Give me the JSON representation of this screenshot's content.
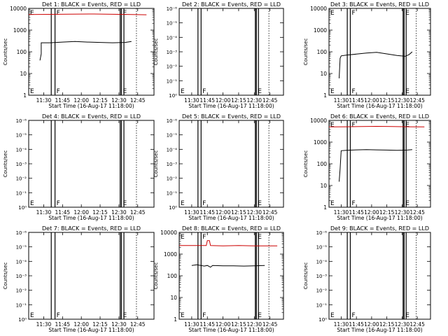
{
  "common": {
    "title_suffix": "BLACK = Events, RED = LLD",
    "xlabel": "Start Time (16-Aug-17 11:18:00)",
    "ylabel": "Counts/sec",
    "x_ticks": [
      "11:30",
      "11:45",
      "12:00",
      "12:15",
      "12:30",
      "12:45"
    ],
    "log_ticks": [
      "1",
      "10",
      "100",
      "1000",
      "10000"
    ],
    "exp_ticks": [
      "10⁰",
      "10⁻¹",
      "10⁻²",
      "10⁻³",
      "10⁻⁴",
      "10⁻⁵",
      "10⁻⁶"
    ],
    "marker_labels": [
      "E",
      "F",
      "E"
    ],
    "colors": {
      "events": "#000000",
      "lld": "#cc0000"
    }
  },
  "chart_data": [
    {
      "type": "line",
      "title": "Det 1: BLACK = Events, RED = LLD",
      "y_scale": "log",
      "ylim": [
        1,
        10000
      ],
      "xlim": [
        "11:18",
        "12:58"
      ],
      "vlines": [
        "11:36",
        "11:39",
        "12:31",
        "12:32",
        "12:34",
        "12:44"
      ],
      "series": [
        {
          "name": "RED = LLD",
          "x": [
            "11:18",
            "11:35",
            "11:50",
            "12:10",
            "12:30",
            "12:40",
            "12:52"
          ],
          "values": [
            5200,
            5300,
            5400,
            5500,
            5300,
            5200,
            5100
          ]
        },
        {
          "name": "BLACK = Events",
          "x": [
            "11:27",
            "11:28",
            "11:28",
            "11:35",
            "11:45",
            "11:55",
            "12:05",
            "12:15",
            "12:25",
            "12:35",
            "12:40"
          ],
          "values": [
            40,
            80,
            260,
            260,
            280,
            300,
            280,
            270,
            260,
            270,
            300
          ]
        }
      ]
    },
    {
      "type": "line",
      "title": "Det 2: BLACK = Events, RED = LLD",
      "y_scale": "exp",
      "xlim": [
        "11:18",
        "12:58"
      ],
      "vlines": [
        "11:36",
        "11:39",
        "12:31",
        "12:32",
        "12:34",
        "12:44"
      ],
      "series": []
    },
    {
      "type": "line",
      "title": "Det 3: BLACK = Events, RED = LLD",
      "y_scale": "log",
      "ylim": [
        1,
        10000
      ],
      "xlim": [
        "11:18",
        "12:58"
      ],
      "vlines": [
        "11:36",
        "11:39",
        "12:31",
        "12:32",
        "12:34",
        "12:44"
      ],
      "series": [
        {
          "name": "BLACK = Events",
          "x": [
            "11:28",
            "11:29",
            "11:30",
            "11:35",
            "11:45",
            "11:55",
            "12:05",
            "12:15",
            "12:25",
            "12:33",
            "12:37",
            "12:40"
          ],
          "values": [
            6,
            50,
            65,
            70,
            78,
            88,
            95,
            80,
            68,
            62,
            75,
            100
          ]
        }
      ]
    },
    {
      "type": "line",
      "title": "Det 4: BLACK = Events, RED = LLD",
      "y_scale": "exp",
      "xlim": [
        "11:18",
        "12:58"
      ],
      "vlines": [
        "11:36",
        "11:39",
        "12:31",
        "12:32",
        "12:34",
        "12:44"
      ],
      "series": []
    },
    {
      "type": "line",
      "title": "Det 5: BLACK = Events, RED = LLD",
      "y_scale": "exp",
      "xlim": [
        "11:18",
        "12:58"
      ],
      "vlines": [
        "11:36",
        "11:39",
        "12:31",
        "12:32",
        "12:34",
        "12:44"
      ],
      "series": []
    },
    {
      "type": "line",
      "title": "Det 6: BLACK = Events, RED = LLD",
      "y_scale": "log",
      "ylim": [
        1,
        10000
      ],
      "xlim": [
        "11:18",
        "12:58"
      ],
      "vlines": [
        "11:36",
        "11:39",
        "12:31",
        "12:32",
        "12:34",
        "12:44"
      ],
      "series": [
        {
          "name": "RED = LLD",
          "x": [
            "11:18",
            "11:35",
            "11:50",
            "12:05",
            "12:20",
            "12:35",
            "12:52"
          ],
          "values": [
            5000,
            5100,
            5200,
            5300,
            5200,
            5100,
            5000
          ]
        },
        {
          "name": "BLACK = Events",
          "x": [
            "11:28",
            "11:29",
            "11:30",
            "11:35",
            "11:45",
            "11:55",
            "12:05",
            "12:15",
            "12:25",
            "12:35",
            "12:40"
          ],
          "values": [
            15,
            60,
            400,
            420,
            440,
            450,
            440,
            430,
            420,
            430,
            450
          ]
        }
      ]
    },
    {
      "type": "line",
      "title": "Det 7: BLACK = Events, RED = LLD",
      "y_scale": "exp",
      "xlim": [
        "11:18",
        "12:58"
      ],
      "vlines": [
        "11:36",
        "11:39",
        "12:31",
        "12:32",
        "12:34",
        "12:44"
      ],
      "series": []
    },
    {
      "type": "line",
      "title": "Det 8: BLACK = Events, RED = LLD",
      "y_scale": "log",
      "ylim": [
        1,
        10000
      ],
      "xlim": [
        "11:18",
        "12:58"
      ],
      "vlines": [
        "11:36",
        "11:39",
        "12:31",
        "12:32",
        "12:34",
        "12:44"
      ],
      "series": [
        {
          "name": "RED = LLD",
          "x": [
            "11:18",
            "11:35",
            "11:44",
            "11:45",
            "11:47",
            "11:48",
            "12:00",
            "12:15",
            "12:30",
            "12:45",
            "12:52"
          ],
          "values": [
            2500,
            2500,
            2500,
            4200,
            4200,
            2500,
            2400,
            2500,
            2400,
            2400,
            2400
          ]
        },
        {
          "name": "BLACK = Events",
          "x": [
            "11:30",
            "11:35",
            "11:42",
            "11:45",
            "11:48",
            "11:50",
            "12:00",
            "12:10",
            "12:20",
            "12:30",
            "12:40"
          ],
          "values": [
            300,
            320,
            280,
            300,
            250,
            300,
            290,
            290,
            280,
            290,
            300
          ]
        }
      ]
    },
    {
      "type": "line",
      "title": "Det 9: BLACK = Events, RED = LLD",
      "y_scale": "exp",
      "xlim": [
        "11:18",
        "12:58"
      ],
      "vlines": [
        "11:36",
        "11:39",
        "12:31",
        "12:32",
        "12:34",
        "12:44"
      ],
      "series": []
    }
  ]
}
